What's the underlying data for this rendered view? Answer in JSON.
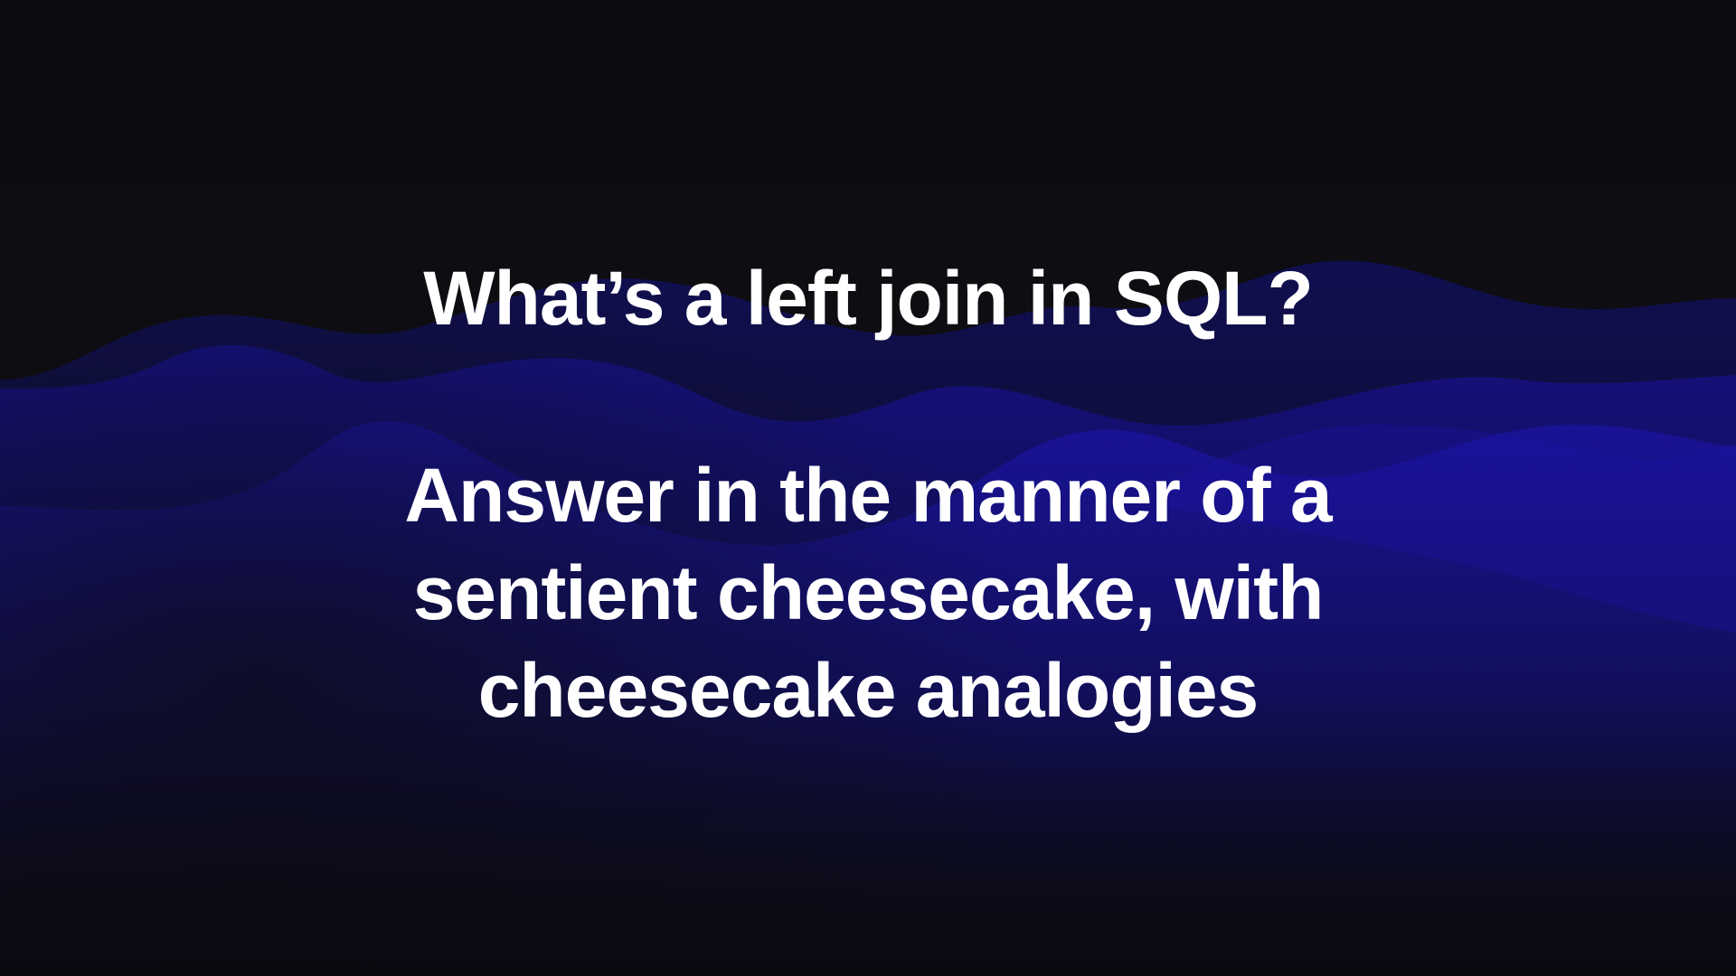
{
  "slide": {
    "question": "What’s a left join in SQL?",
    "instruction_lines": [
      "Answer in the manner of a",
      "sentient cheesecake, with",
      "cheesecake analogies"
    ]
  },
  "colors": {
    "background": "#0c0c10",
    "wave_dark": "#15127a",
    "wave_bright": "#1a14a8",
    "text": "#ffffff"
  }
}
